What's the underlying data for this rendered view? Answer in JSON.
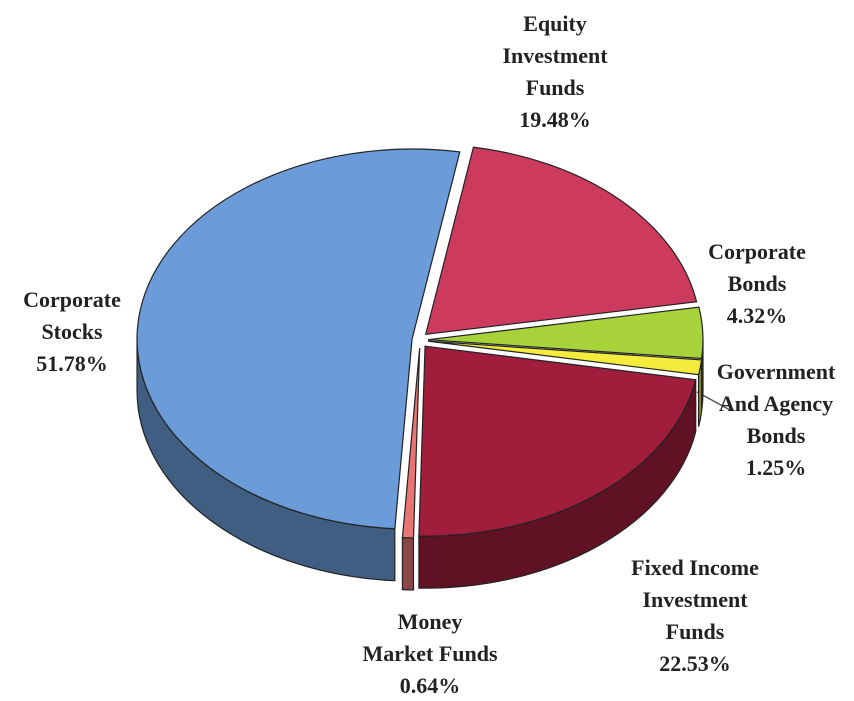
{
  "chart_data": {
    "type": "pie",
    "categories": [
      "Equity\nInvestment\nFunds",
      "Corporate\nBonds",
      "Government\nAnd Agency\nBonds",
      "Fixed Income\nInvestment\nFunds",
      "Money\nMarket Funds",
      "Corporate\nStocks"
    ],
    "values": [
      19.48,
      4.32,
      1.25,
      22.53,
      0.64,
      51.78
    ],
    "value_labels": [
      "19.48%",
      "4.32%",
      "1.25%",
      "22.53%",
      "0.64%",
      "51.78%"
    ],
    "colors": [
      "#cc3a5e",
      "#a8d23a",
      "#f3ec3c",
      "#a01d3c",
      "#e87474",
      "#6b9bd8"
    ]
  }
}
